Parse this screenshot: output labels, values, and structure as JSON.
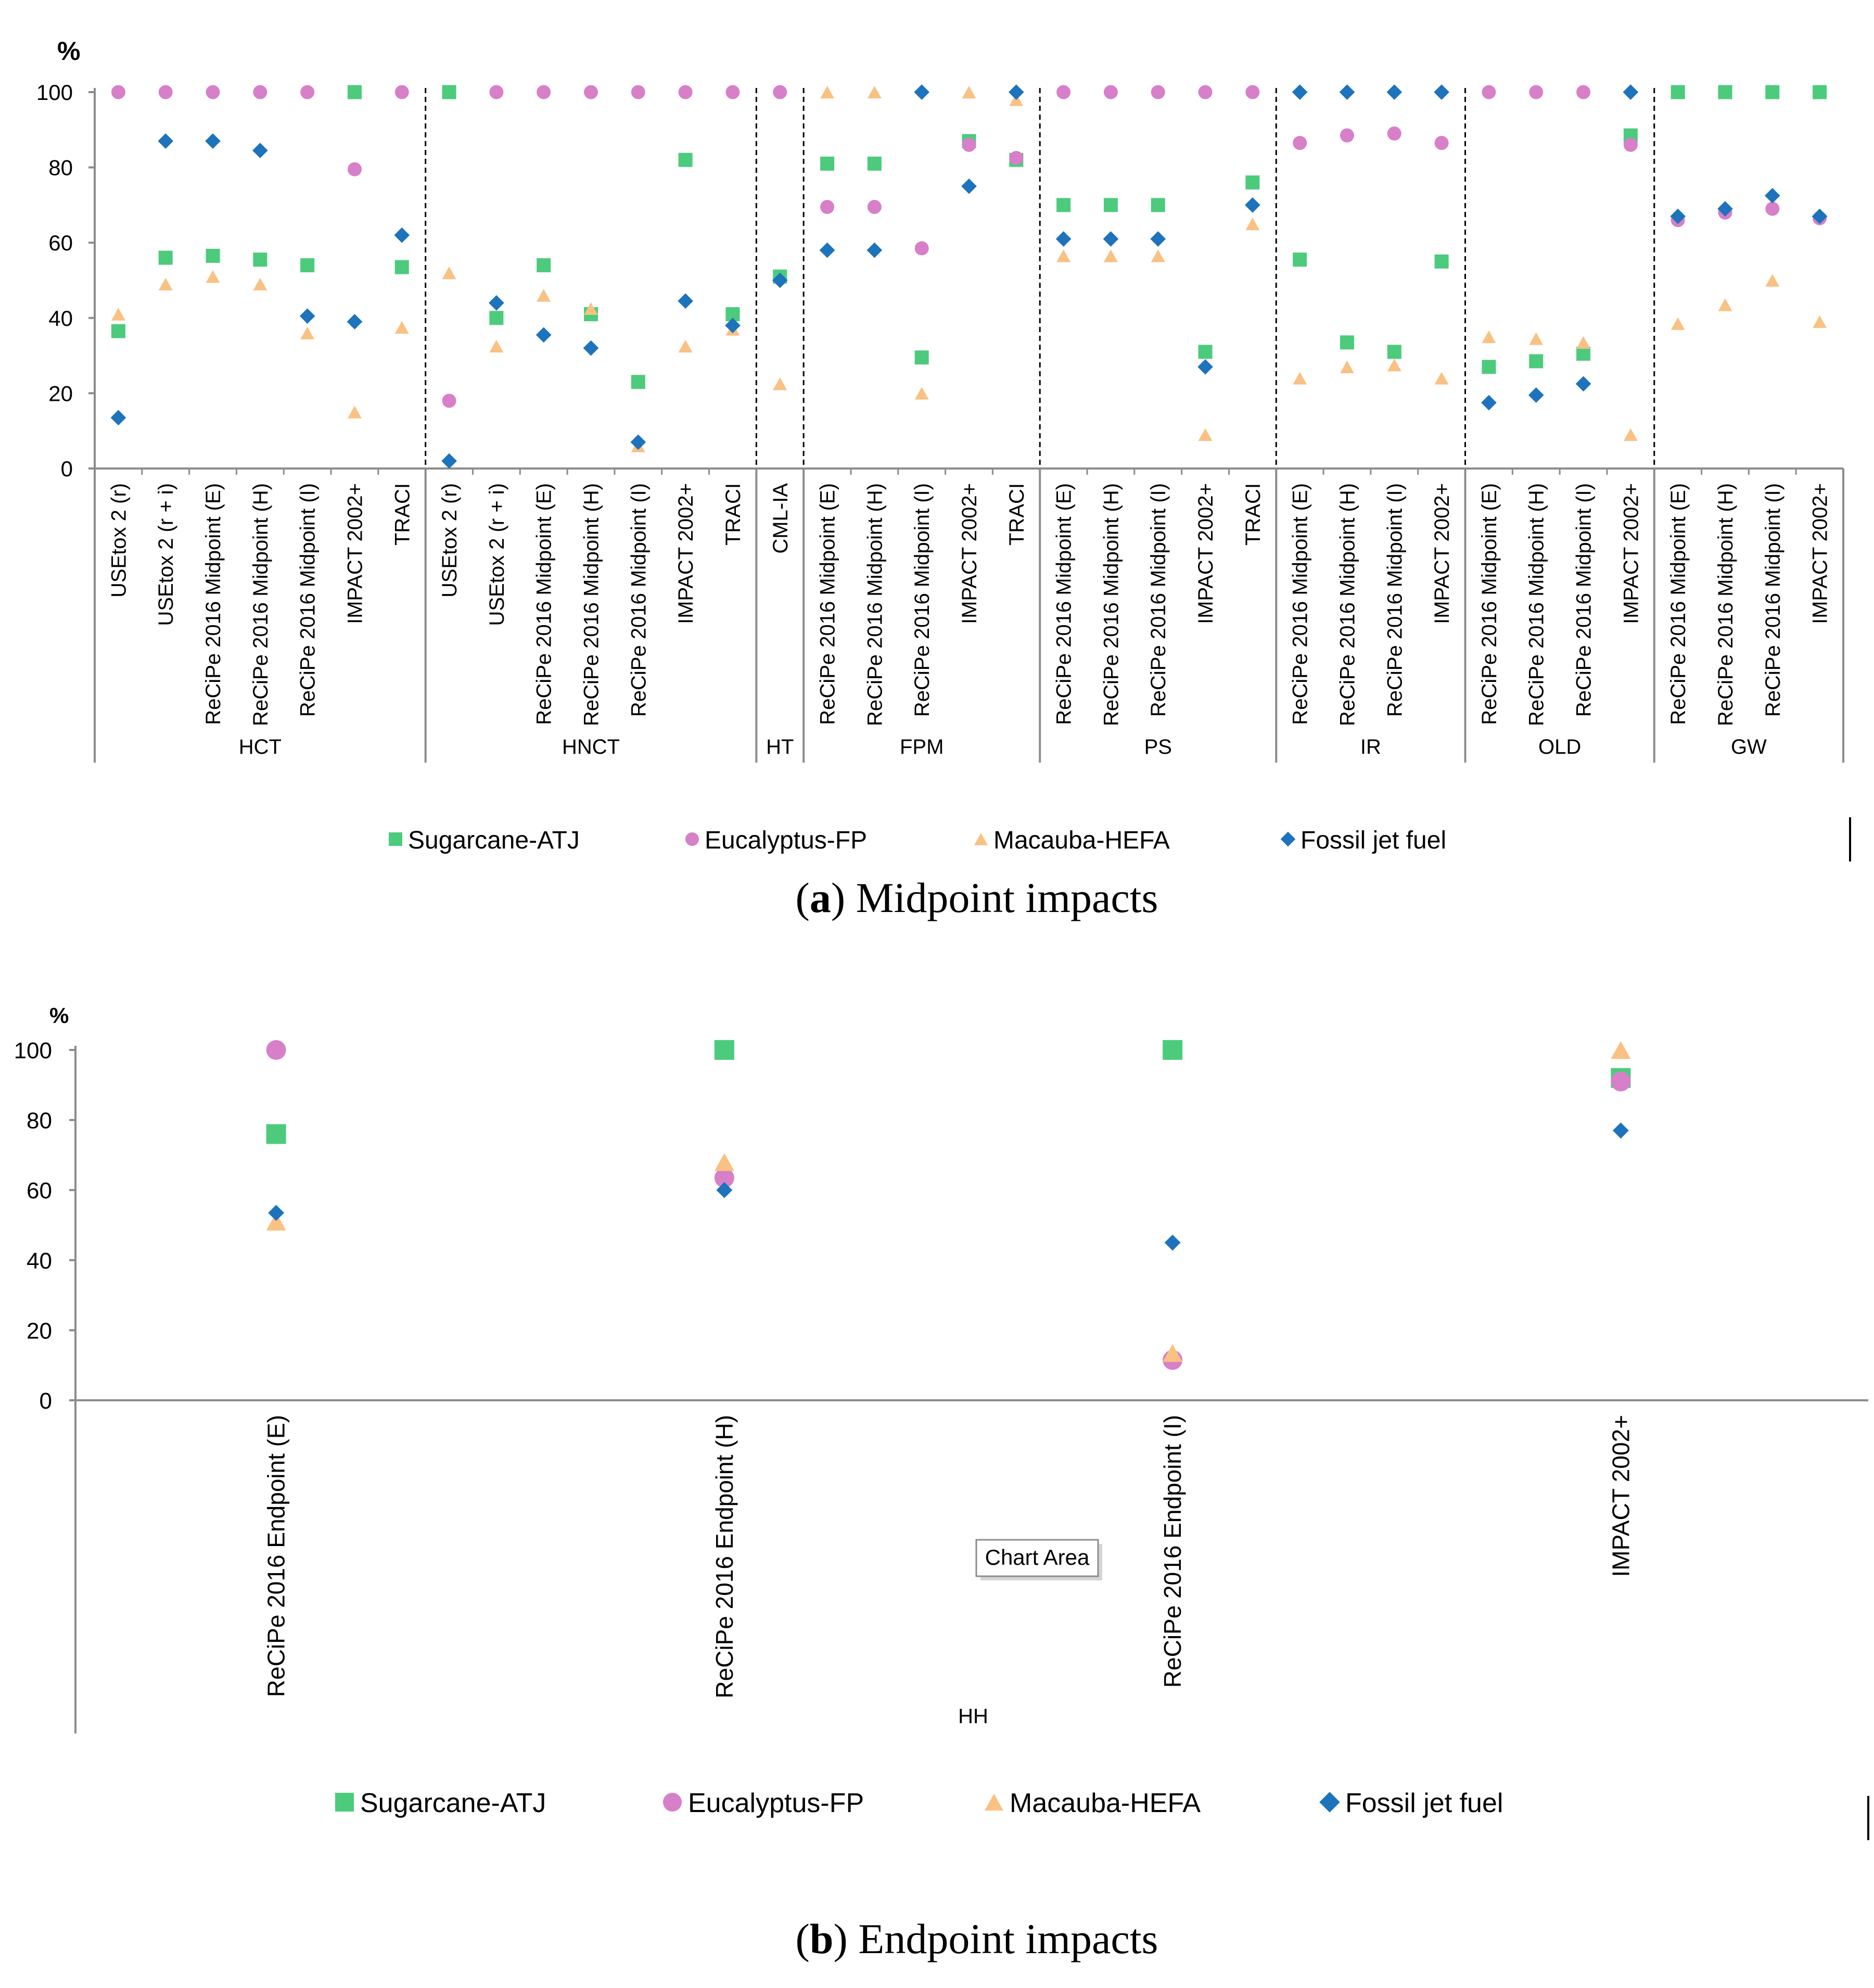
{
  "chart_data": [
    {
      "id": "midpoint",
      "type": "scatter",
      "title": "",
      "ylabel": "%",
      "ylim": [
        0,
        100
      ],
      "yticks": [
        0,
        20,
        40,
        60,
        80,
        100
      ],
      "caption_letter": "a",
      "caption_text": " Midpoint impacts",
      "legend": {
        "Sugarcane-ATJ": "Sugarcane-ATJ",
        "Eucalyptus-FP": "Eucalyptus-FP",
        "Macauba-HEFA": "Macauba-HEFA",
        "Fossil jet fuel": "Fossil jet fuel"
      },
      "groups": [
        {
          "name": "HCT",
          "categories": [
            {
              "label": "USEtox 2 (r)",
              "values": {
                "Sugarcane-ATJ": 36.5,
                "Eucalyptus-FP": 100,
                "Macauba-HEFA": 41,
                "Fossil jet fuel": 13.5
              }
            },
            {
              "label": "USEtox 2 (r + i)",
              "values": {
                "Sugarcane-ATJ": 56,
                "Eucalyptus-FP": 100,
                "Macauba-HEFA": 49,
                "Fossil jet fuel": 87
              }
            },
            {
              "label": "ReCiPe 2016 Midpoint (E)",
              "values": {
                "Sugarcane-ATJ": 56.5,
                "Eucalyptus-FP": 100,
                "Macauba-HEFA": 51,
                "Fossil jet fuel": 87
              }
            },
            {
              "label": "ReCiPe 2016 Midpoint (H)",
              "values": {
                "Sugarcane-ATJ": 55.5,
                "Eucalyptus-FP": 100,
                "Macauba-HEFA": 49,
                "Fossil jet fuel": 84.5
              }
            },
            {
              "label": "ReCiPe 2016 Midpoint (I)",
              "values": {
                "Sugarcane-ATJ": 54,
                "Eucalyptus-FP": 100,
                "Macauba-HEFA": 36,
                "Fossil jet fuel": 40.5
              }
            },
            {
              "label": "IMPACT 2002+",
              "values": {
                "Sugarcane-ATJ": 100,
                "Eucalyptus-FP": 79.5,
                "Macauba-HEFA": 15,
                "Fossil jet fuel": 39
              }
            },
            {
              "label": "TRACI",
              "values": {
                "Sugarcane-ATJ": 53.5,
                "Eucalyptus-FP": 100,
                "Macauba-HEFA": 37.5,
                "Fossil jet fuel": 62
              }
            }
          ]
        },
        {
          "name": "HNCT",
          "categories": [
            {
              "label": "USEtox 2 (r)",
              "values": {
                "Sugarcane-ATJ": 100,
                "Eucalyptus-FP": 18,
                "Macauba-HEFA": 52,
                "Fossil jet fuel": 2
              }
            },
            {
              "label": "USEtox 2 (r + i)",
              "values": {
                "Sugarcane-ATJ": 40,
                "Eucalyptus-FP": 100,
                "Macauba-HEFA": 32.5,
                "Fossil jet fuel": 44
              }
            },
            {
              "label": "ReCiPe 2016 Midpoint (E)",
              "values": {
                "Sugarcane-ATJ": 54,
                "Eucalyptus-FP": 100,
                "Macauba-HEFA": 46,
                "Fossil jet fuel": 35.5
              }
            },
            {
              "label": "ReCiPe 2016 Midpoint (H)",
              "values": {
                "Sugarcane-ATJ": 41,
                "Eucalyptus-FP": 100,
                "Macauba-HEFA": 42.5,
                "Fossil jet fuel": 32
              }
            },
            {
              "label": "ReCiPe 2016 Midpoint (I)",
              "values": {
                "Sugarcane-ATJ": 23,
                "Eucalyptus-FP": 100,
                "Macauba-HEFA": 6,
                "Fossil jet fuel": 7
              }
            },
            {
              "label": "IMPACT 2002+",
              "values": {
                "Sugarcane-ATJ": 82,
                "Eucalyptus-FP": 100,
                "Macauba-HEFA": 32.5,
                "Fossil jet fuel": 44.5
              }
            },
            {
              "label": "TRACI",
              "values": {
                "Sugarcane-ATJ": 41,
                "Eucalyptus-FP": 100,
                "Macauba-HEFA": 37,
                "Fossil jet fuel": 38
              }
            }
          ]
        },
        {
          "name": "HT",
          "categories": [
            {
              "label": "CML-IA",
              "values": {
                "Sugarcane-ATJ": 51,
                "Eucalyptus-FP": 100,
                "Macauba-HEFA": 22.5,
                "Fossil jet fuel": 50
              }
            }
          ]
        },
        {
          "name": "FPM",
          "categories": [
            {
              "label": "ReCiPe 2016 Midpoint (E)",
              "values": {
                "Sugarcane-ATJ": 81,
                "Eucalyptus-FP": 69.5,
                "Macauba-HEFA": 100,
                "Fossil jet fuel": 58
              }
            },
            {
              "label": "ReCiPe 2016 Midpoint (H)",
              "values": {
                "Sugarcane-ATJ": 81,
                "Eucalyptus-FP": 69.5,
                "Macauba-HEFA": 100,
                "Fossil jet fuel": 58
              }
            },
            {
              "label": "ReCiPe 2016 Midpoint (I)",
              "values": {
                "Sugarcane-ATJ": 29.5,
                "Eucalyptus-FP": 58.5,
                "Macauba-HEFA": 20,
                "Fossil jet fuel": 100
              }
            },
            {
              "label": "IMPACT 2002+",
              "values": {
                "Sugarcane-ATJ": 87,
                "Eucalyptus-FP": 86,
                "Macauba-HEFA": 100,
                "Fossil jet fuel": 75
              }
            },
            {
              "label": "TRACI",
              "values": {
                "Sugarcane-ATJ": 82,
                "Eucalyptus-FP": 82.5,
                "Macauba-HEFA": 98,
                "Fossil jet fuel": 100
              }
            }
          ]
        },
        {
          "name": "PS",
          "categories": [
            {
              "label": "ReCiPe 2016 Midpoint (E)",
              "values": {
                "Sugarcane-ATJ": 70,
                "Eucalyptus-FP": 100,
                "Macauba-HEFA": 56.5,
                "Fossil jet fuel": 61
              }
            },
            {
              "label": "ReCiPe 2016 Midpoint (H)",
              "values": {
                "Sugarcane-ATJ": 70,
                "Eucalyptus-FP": 100,
                "Macauba-HEFA": 56.5,
                "Fossil jet fuel": 61
              }
            },
            {
              "label": "ReCiPe 2016 Midpoint (I)",
              "values": {
                "Sugarcane-ATJ": 70,
                "Eucalyptus-FP": 100,
                "Macauba-HEFA": 56.5,
                "Fossil jet fuel": 61
              }
            },
            {
              "label": "IMPACT 2002+",
              "values": {
                "Sugarcane-ATJ": 31,
                "Eucalyptus-FP": 100,
                "Macauba-HEFA": 9,
                "Fossil jet fuel": 27
              }
            },
            {
              "label": "TRACI",
              "values": {
                "Sugarcane-ATJ": 76,
                "Eucalyptus-FP": 100,
                "Macauba-HEFA": 65,
                "Fossil jet fuel": 70
              }
            }
          ]
        },
        {
          "name": "IR",
          "categories": [
            {
              "label": "ReCiPe 2016 Midpoint (E)",
              "values": {
                "Sugarcane-ATJ": 55.5,
                "Eucalyptus-FP": 86.5,
                "Macauba-HEFA": 24,
                "Fossil jet fuel": 100
              }
            },
            {
              "label": "ReCiPe 2016 Midpoint (H)",
              "values": {
                "Sugarcane-ATJ": 33.5,
                "Eucalyptus-FP": 88.5,
                "Macauba-HEFA": 27,
                "Fossil jet fuel": 100
              }
            },
            {
              "label": "ReCiPe 2016 Midpoint (I)",
              "values": {
                "Sugarcane-ATJ": 31,
                "Eucalyptus-FP": 89,
                "Macauba-HEFA": 27.5,
                "Fossil jet fuel": 100
              }
            },
            {
              "label": "IMPACT 2002+",
              "values": {
                "Sugarcane-ATJ": 55,
                "Eucalyptus-FP": 86.5,
                "Macauba-HEFA": 24,
                "Fossil jet fuel": 100
              }
            }
          ]
        },
        {
          "name": "OLD",
          "categories": [
            {
              "label": "ReCiPe 2016 Midpoint (E)",
              "values": {
                "Sugarcane-ATJ": 27,
                "Eucalyptus-FP": 100,
                "Macauba-HEFA": 35,
                "Fossil jet fuel": 17.5
              }
            },
            {
              "label": "ReCiPe 2016 Midpoint (H)",
              "values": {
                "Sugarcane-ATJ": 28.5,
                "Eucalyptus-FP": 100,
                "Macauba-HEFA": 34.5,
                "Fossil jet fuel": 19.5
              }
            },
            {
              "label": "ReCiPe 2016 Midpoint (I)",
              "values": {
                "Sugarcane-ATJ": 30.5,
                "Eucalyptus-FP": 100,
                "Macauba-HEFA": 33.5,
                "Fossil jet fuel": 22.5
              }
            },
            {
              "label": "IMPACT 2002+",
              "values": {
                "Sugarcane-ATJ": 88.5,
                "Eucalyptus-FP": 86,
                "Macauba-HEFA": 9,
                "Fossil jet fuel": 100
              }
            }
          ]
        },
        {
          "name": "GW",
          "categories": [
            {
              "label": "ReCiPe 2016 Midpoint (E)",
              "values": {
                "Sugarcane-ATJ": 100,
                "Eucalyptus-FP": 66,
                "Macauba-HEFA": 38.5,
                "Fossil jet fuel": 67
              }
            },
            {
              "label": "ReCiPe 2016 Midpoint (H)",
              "values": {
                "Sugarcane-ATJ": 100,
                "Eucalyptus-FP": 68,
                "Macauba-HEFA": 43.5,
                "Fossil jet fuel": 69
              }
            },
            {
              "label": "ReCiPe 2016 Midpoint (I)",
              "values": {
                "Sugarcane-ATJ": 100,
                "Eucalyptus-FP": 69,
                "Macauba-HEFA": 50,
                "Fossil jet fuel": 72.5
              }
            },
            {
              "label": "IMPACT 2002+",
              "values": {
                "Sugarcane-ATJ": 100,
                "Eucalyptus-FP": 66.5,
                "Macauba-HEFA": 39,
                "Fossil jet fuel": 67
              }
            }
          ]
        }
      ]
    },
    {
      "id": "endpoint",
      "type": "scatter",
      "title": "",
      "ylabel": "%",
      "ylim": [
        0,
        100
      ],
      "yticks": [
        0,
        20,
        40,
        60,
        80,
        100
      ],
      "caption_letter": "b",
      "caption_text": " Endpoint impacts",
      "tooltip": "Chart Area",
      "legend": {
        "Sugarcane-ATJ": "Sugarcane-ATJ",
        "Eucalyptus-FP": "Eucalyptus-FP",
        "Macauba-HEFA": "Macauba-HEFA",
        "Fossil jet fuel": "Fossil jet fuel"
      },
      "groups": [
        {
          "name": "HH",
          "categories": [
            {
              "label": "ReCiPe 2016 Endpoint (E)",
              "values": {
                "Sugarcane-ATJ": 76,
                "Eucalyptus-FP": 100,
                "Macauba-HEFA": 51,
                "Fossil jet fuel": 53.5
              }
            },
            {
              "label": "ReCiPe 2016 Endpoint (H)",
              "values": {
                "Sugarcane-ATJ": 100,
                "Eucalyptus-FP": 63.5,
                "Macauba-HEFA": 68,
                "Fossil jet fuel": 60
              }
            },
            {
              "label": "ReCiPe 2016 Endpoint (I)",
              "values": {
                "Sugarcane-ATJ": 100,
                "Eucalyptus-FP": 11.5,
                "Macauba-HEFA": 13.5,
                "Fossil jet fuel": 45
              }
            },
            {
              "label": "IMPACT 2002+",
              "values": {
                "Sugarcane-ATJ": 92,
                "Eucalyptus-FP": 91,
                "Macauba-HEFA": 100,
                "Fossil jet fuel": 77
              }
            }
          ]
        }
      ]
    }
  ],
  "series": [
    {
      "name": "Sugarcane-ATJ",
      "marker": "square",
      "color": "#4CCB7C"
    },
    {
      "name": "Eucalyptus-FP",
      "marker": "circle",
      "color": "#D77FC9"
    },
    {
      "name": "Macauba-HEFA",
      "marker": "triangle",
      "color": "#F9C183"
    },
    {
      "name": "Fossil jet fuel",
      "marker": "diamond",
      "color": "#1D73BC"
    }
  ]
}
